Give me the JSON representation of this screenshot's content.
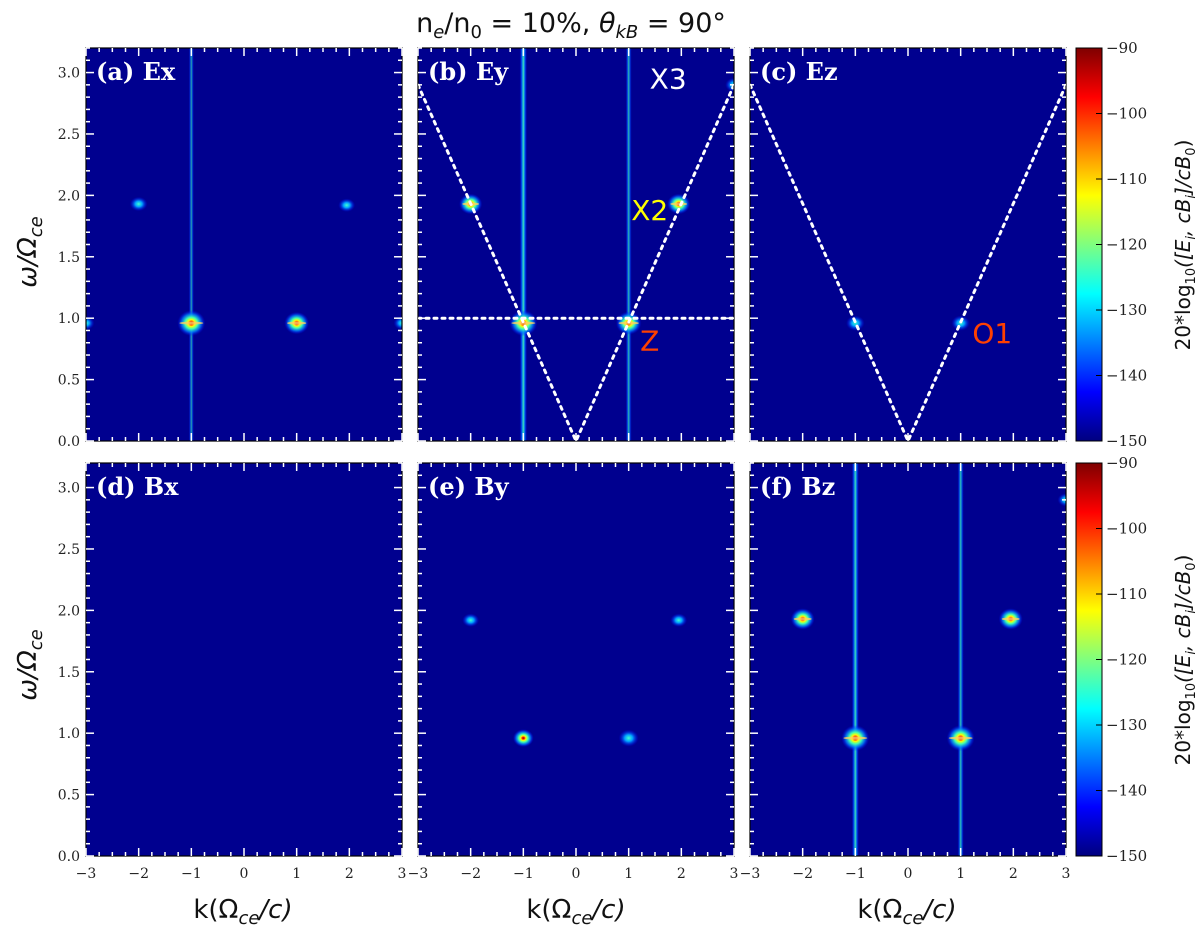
{
  "title": "n_e/n_0 = 10%,  θ_kB = 90°",
  "title_parts": {
    "ne": "n",
    "ne_sub": "e",
    "slash": "/n",
    "n0_sub": "0",
    "eq": " = 10%,  ",
    "theta": "θ",
    "theta_sub": "kB",
    "eq2": " = 90",
    "deg": "°"
  },
  "colors": {
    "background": "#00008f",
    "annotation_x": "#ffffff",
    "annotation_x2": "#ffff00",
    "annotation_z": "#ff4000",
    "dotted": "#ffffff"
  },
  "chart_data": {
    "type": "heatmap",
    "xlabel": "k(Ω_ce/c)",
    "xlabel_parts": {
      "k": "k(Ω",
      "sub": "ce",
      "tail": "/c)"
    },
    "ylabel": "ω/Ω_ce",
    "ylabel_parts": {
      "w": "ω/Ω",
      "sub": "ce"
    },
    "xlim": [
      -3,
      3
    ],
    "ylim": [
      0,
      3.2
    ],
    "xticks": [
      "−3",
      "−2",
      "−1",
      "0",
      "1",
      "2",
      "3"
    ],
    "yticks": [
      "0.0",
      "0.5",
      "1.0",
      "1.5",
      "2.0",
      "2.5",
      "3.0"
    ],
    "colorbar": {
      "range": [
        -150,
        -90
      ],
      "ticks": [
        "−90",
        "−100",
        "−110",
        "−120",
        "−130",
        "−140",
        "−150"
      ],
      "label": "20*log10([E_i, cB_i]/cB_0)",
      "label_parts": {
        "a": "20*log",
        "sub1": "10",
        "b": "([E",
        "sub2": "i",
        "c": ", cB",
        "sub3": "i",
        "d": "]/cB",
        "sub4": "0",
        "e": ")"
      }
    },
    "panels": [
      {
        "id": "a",
        "label": "(a) Ex",
        "spots": [
          {
            "k": -1,
            "w": 0.96,
            "s": 1.0
          },
          {
            "k": 1,
            "w": 0.96,
            "s": 0.8
          },
          {
            "k": -2,
            "w": 1.93,
            "s": 0.35
          },
          {
            "k": 1.95,
            "w": 1.92,
            "s": 0.3
          },
          {
            "k": -3,
            "w": 0.96,
            "s": 0.3
          },
          {
            "k": 3,
            "w": 0.96,
            "s": 0.3
          }
        ],
        "lines": [
          {
            "k": -1,
            "s": 0.45
          }
        ],
        "annotations": [],
        "dotted": []
      },
      {
        "id": "b",
        "label": "(b) Ey",
        "spots": [
          {
            "k": -1,
            "w": 0.96,
            "s": 1.0
          },
          {
            "k": 1,
            "w": 0.96,
            "s": 0.85
          },
          {
            "k": -2,
            "w": 1.93,
            "s": 0.7
          },
          {
            "k": 1.95,
            "w": 1.93,
            "s": 0.7
          },
          {
            "k": 3,
            "w": 2.9,
            "s": 0.35
          }
        ],
        "lines": [
          {
            "k": -1,
            "s": 0.9
          },
          {
            "k": 1,
            "s": 0.6
          }
        ],
        "annotations": [
          {
            "text": "X3",
            "k": 1.75,
            "w": 2.95,
            "color": "annotation_x"
          },
          {
            "text": "X2",
            "k": 1.4,
            "w": 1.88,
            "color": "annotation_x2"
          },
          {
            "text": "Z",
            "k": 1.4,
            "w": 0.82,
            "color": "annotation_z"
          }
        ],
        "dotted": [
          [
            [
              -3,
              2.9
            ],
            [
              0,
              0
            ],
            [
              3,
              2.9
            ]
          ],
          [
            [
              -3,
              1.0
            ],
            [
              3,
              1.0
            ]
          ]
        ]
      },
      {
        "id": "c",
        "label": "(c) Ez",
        "spots": [
          {
            "k": -1,
            "w": 0.96,
            "s": 0.4
          },
          {
            "k": 1,
            "w": 0.96,
            "s": 0.4
          }
        ],
        "lines": [],
        "annotations": [
          {
            "text": "O1",
            "k": 1.6,
            "w": 0.88,
            "color": "annotation_z"
          }
        ],
        "dotted": [
          [
            [
              -3,
              2.9
            ],
            [
              0,
              0
            ],
            [
              3,
              2.9
            ]
          ]
        ]
      },
      {
        "id": "d",
        "label": "(d) Bx",
        "spots": [],
        "lines": [],
        "annotations": [],
        "dotted": []
      },
      {
        "id": "e",
        "label": "(e) By",
        "spots": [
          {
            "k": -1,
            "w": 0.96,
            "s": 0.55
          },
          {
            "k": 1,
            "w": 0.96,
            "s": 0.5
          },
          {
            "k": -2,
            "w": 1.92,
            "s": 0.3
          },
          {
            "k": 1.95,
            "w": 1.92,
            "s": 0.3
          }
        ],
        "lines": [],
        "annotations": [],
        "dotted": []
      },
      {
        "id": "f",
        "label": "(f) Bz",
        "spots": [
          {
            "k": -1,
            "w": 0.96,
            "s": 1.0
          },
          {
            "k": 1,
            "w": 0.96,
            "s": 1.0
          },
          {
            "k": -2,
            "w": 1.93,
            "s": 0.75
          },
          {
            "k": 1.95,
            "w": 1.93,
            "s": 0.75
          },
          {
            "k": 3,
            "w": 2.9,
            "s": 0.3
          }
        ],
        "lines": [
          {
            "k": -1,
            "s": 0.85
          },
          {
            "k": 1,
            "s": 0.65
          }
        ],
        "annotations": [],
        "dotted": []
      }
    ]
  }
}
